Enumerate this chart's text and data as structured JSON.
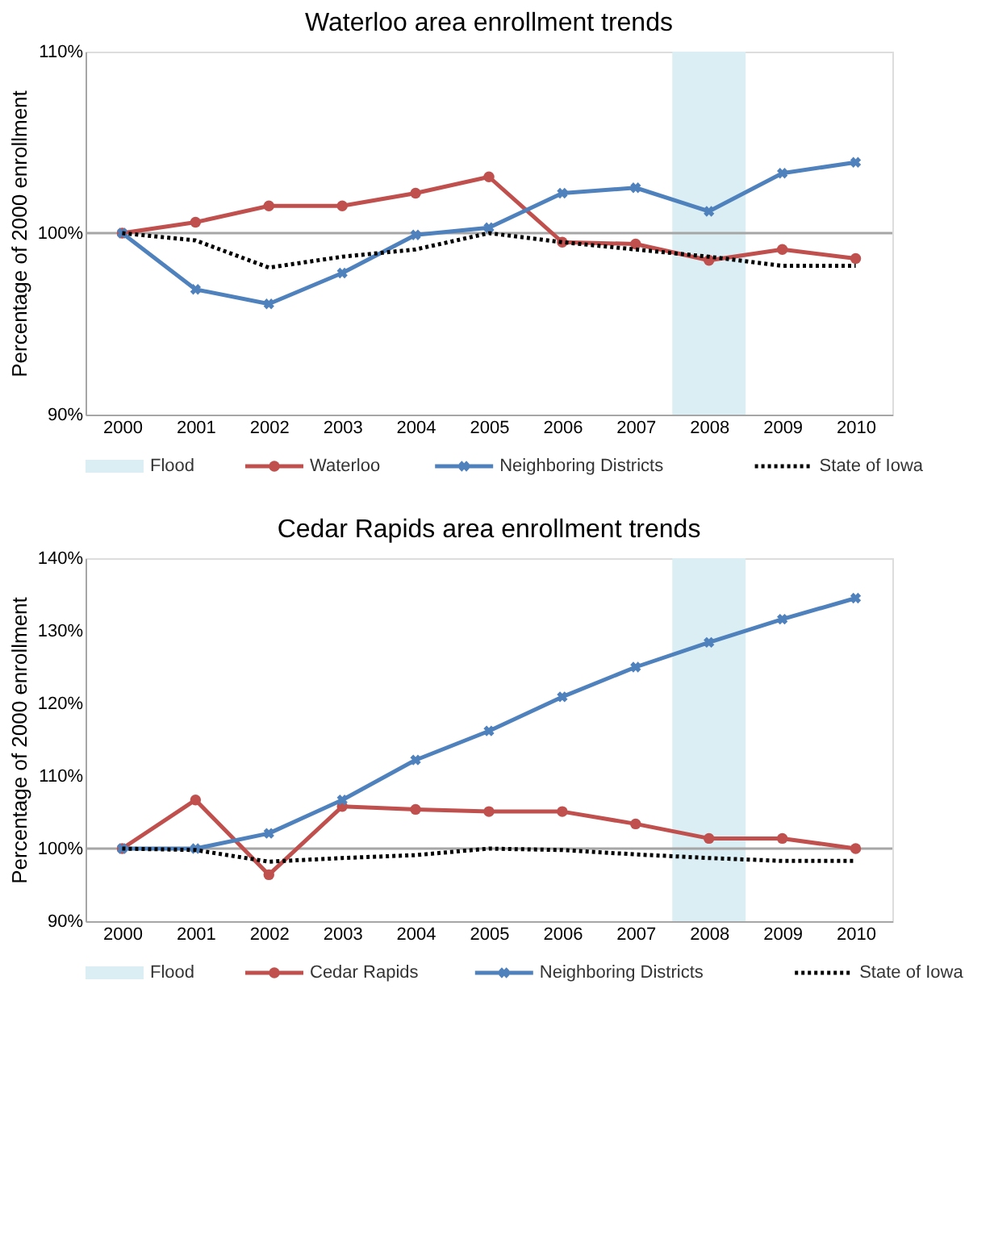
{
  "chart_data": [
    {
      "type": "line",
      "title": "Waterloo area enrollment trends",
      "ylabel": "Percentage of 2000 enrollment",
      "x": [
        2000,
        2001,
        2002,
        2003,
        2004,
        2005,
        2006,
        2007,
        2008,
        2009,
        2010
      ],
      "xlim": [
        1999.5,
        2010.5
      ],
      "xticks": [
        2000,
        2001,
        2002,
        2003,
        2004,
        2005,
        2006,
        2007,
        2008,
        2009,
        2010
      ],
      "ylim": [
        90,
        110
      ],
      "yticks": [
        {
          "value": 90,
          "label": "90%"
        },
        {
          "value": 100,
          "label": "100%"
        },
        {
          "value": 110,
          "label": "110%"
        }
      ],
      "grid": false,
      "legend": "bottom",
      "bands": [
        {
          "axis": "x",
          "from": 2007.5,
          "to": 2008.5,
          "label": "Flood",
          "color": "#dbeef4"
        }
      ],
      "ref_lines": [
        {
          "axis": "y",
          "value": 100,
          "color": "#a6a6a6"
        }
      ],
      "series": [
        {
          "name": "Waterloo",
          "color": "#c0504d",
          "marker": "circle",
          "line_style": "solid",
          "values": [
            100,
            100.6,
            101.5,
            101.5,
            102.2,
            103.1,
            99.5,
            99.4,
            98.5,
            99.1,
            98.6
          ]
        },
        {
          "name": "Neighboring Districts",
          "color": "#4f81bd",
          "marker": "cross",
          "line_style": "solid",
          "values": [
            100,
            96.9,
            96.1,
            97.8,
            99.9,
            100.3,
            102.2,
            102.5,
            101.2,
            103.3,
            103.9
          ]
        },
        {
          "name": "State of Iowa",
          "color": "#000000",
          "marker": "none",
          "line_style": "dotted",
          "values": [
            100,
            99.6,
            98.1,
            98.7,
            99.1,
            100,
            99.5,
            99.1,
            98.7,
            98.2,
            98.2
          ]
        }
      ]
    },
    {
      "type": "line",
      "title": "Cedar Rapids area enrollment trends",
      "ylabel": "Percentage of 2000 enrollment",
      "x": [
        2000,
        2001,
        2002,
        2003,
        2004,
        2005,
        2006,
        2007,
        2008,
        2009,
        2010
      ],
      "xlim": [
        1999.5,
        2010.5
      ],
      "xticks": [
        2000,
        2001,
        2002,
        2003,
        2004,
        2005,
        2006,
        2007,
        2008,
        2009,
        2010
      ],
      "ylim": [
        90,
        140
      ],
      "yticks": [
        {
          "value": 90,
          "label": "90%"
        },
        {
          "value": 100,
          "label": "100%"
        },
        {
          "value": 110,
          "label": "110%"
        },
        {
          "value": 120,
          "label": "120%"
        },
        {
          "value": 130,
          "label": "130%"
        },
        {
          "value": 140,
          "label": "140%"
        }
      ],
      "grid": false,
      "legend": "bottom",
      "bands": [
        {
          "axis": "x",
          "from": 2007.5,
          "to": 2008.5,
          "label": "Flood",
          "color": "#dbeef4"
        }
      ],
      "ref_lines": [
        {
          "axis": "y",
          "value": 100,
          "color": "#a6a6a6"
        }
      ],
      "series": [
        {
          "name": "Cedar Rapids",
          "color": "#c0504d",
          "marker": "circle",
          "line_style": "solid",
          "values": [
            100,
            106.7,
            96.4,
            105.8,
            105.4,
            105.1,
            105.1,
            103.4,
            101.4,
            101.4,
            100
          ]
        },
        {
          "name": "Neighboring Districts",
          "color": "#4f81bd",
          "marker": "cross",
          "line_style": "solid",
          "values": [
            100,
            100,
            102.1,
            106.7,
            112.2,
            116.2,
            120.9,
            125,
            128.4,
            131.6,
            134.5
          ]
        },
        {
          "name": "State of Iowa",
          "color": "#000000",
          "marker": "none",
          "line_style": "dotted",
          "values": [
            100,
            99.8,
            98.2,
            98.7,
            99.1,
            100,
            99.8,
            99.2,
            98.7,
            98.3,
            98.3
          ]
        }
      ]
    }
  ]
}
